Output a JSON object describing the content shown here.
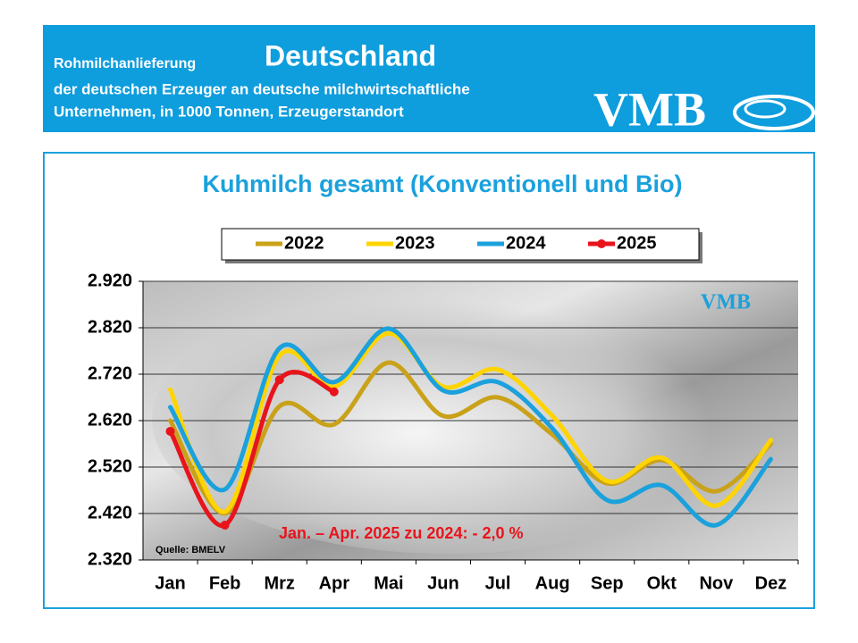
{
  "header": {
    "label": "Rohmilchanlieferung",
    "title": "Deutschland",
    "line1": "der deutschen Erzeuger an deutsche milchwirtschaftliche",
    "line2": "Unternehmen, in 1000 Tonnen, Erzeugerstandort",
    "logo": "VMB"
  },
  "chart_data": {
    "type": "line",
    "title": "Kuhmilch gesamt (Konventionell und Bio)",
    "categories": [
      "Jan",
      "Feb",
      "Mrz",
      "Apr",
      "Mai",
      "Jun",
      "Jul",
      "Aug",
      "Sep",
      "Okt",
      "Nov",
      "Dez"
    ],
    "series": [
      {
        "name": "2022",
        "color": "#c9a21a",
        "values": [
          2620,
          2420,
          2651,
          2612,
          2745,
          2630,
          2670,
          2590,
          2485,
          2535,
          2468,
          2570
        ]
      },
      {
        "name": "2023",
        "color": "#ffd400",
        "values": [
          2687,
          2424,
          2760,
          2693,
          2808,
          2693,
          2730,
          2630,
          2490,
          2540,
          2437,
          2578
        ]
      },
      {
        "name": "2024",
        "color": "#1ba1dc",
        "values": [
          2649,
          2472,
          2776,
          2703,
          2818,
          2685,
          2703,
          2603,
          2449,
          2481,
          2395,
          2537
        ]
      },
      {
        "name": "2025",
        "color": "#e8141c",
        "markers": true,
        "values": [
          2597,
          2395,
          2708,
          2682,
          null,
          null,
          null,
          null,
          null,
          null,
          null,
          null
        ]
      }
    ],
    "ylim": [
      2320,
      2920
    ],
    "yticks": [
      {
        "value": 2320,
        "label": "2.320"
      },
      {
        "value": 2420,
        "label": "2.420"
      },
      {
        "value": 2520,
        "label": "2.520"
      },
      {
        "value": 2620,
        "label": "2.620"
      },
      {
        "value": 2720,
        "label": "2.720"
      },
      {
        "value": 2820,
        "label": "2.820"
      },
      {
        "value": 2920,
        "label": "2.920"
      }
    ],
    "grid": true,
    "annotation": "Jan. – Apr. 2025 zu 2024: - 2,0 %",
    "source": "Quelle:  BMELV",
    "watermark": "VMB"
  }
}
